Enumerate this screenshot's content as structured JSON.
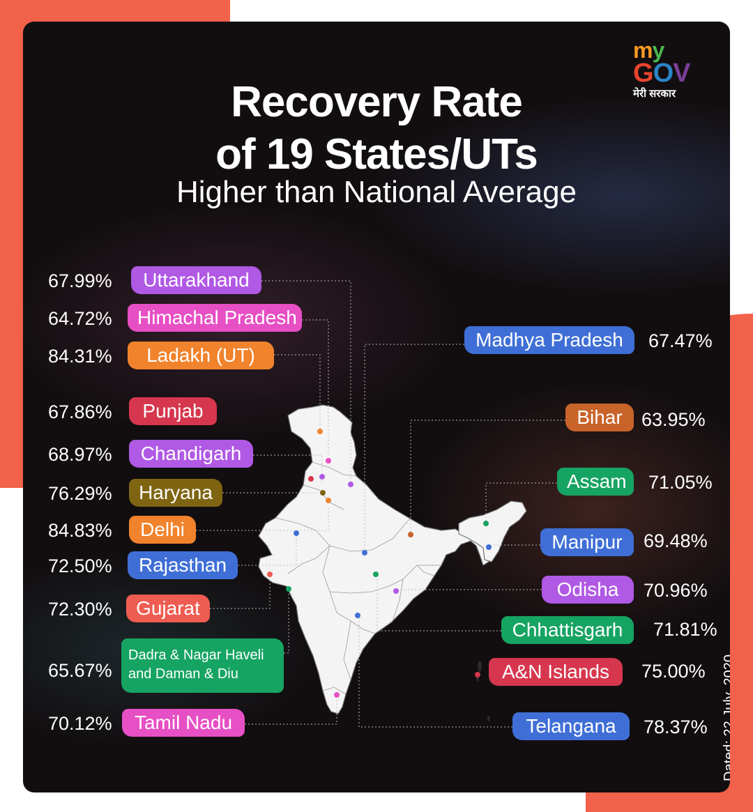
{
  "header": {
    "title_line1": "Recovery Rate",
    "title_line2": "of 19 States/UTs",
    "subtitle": "Higher than National Average"
  },
  "logo": {
    "my": "my",
    "gov": "GOV",
    "hindi": "मेरी सरकार"
  },
  "date_stamp": "Dated: 22 July, 2020",
  "colors": {
    "background": "#120e10",
    "accent_coral": "#f2614a",
    "purple": "#b059e5",
    "pink": "#e74fc4",
    "orange": "#f0832c",
    "crimson": "#d6374e",
    "olive": "#7f6512",
    "blue": "#3f6fd6",
    "salmon": "#ee5c52",
    "green": "#16a462",
    "brown": "#c8632a"
  },
  "left_states": [
    {
      "name": "Uttarakhand",
      "rate": "67.99%",
      "color": "#b059e5"
    },
    {
      "name": "Himachal Pradesh",
      "rate": "64.72%",
      "color": "#e74fc4"
    },
    {
      "name": "Ladakh (UT)",
      "rate": "84.31%",
      "color": "#f0832c"
    },
    {
      "name": "Punjab",
      "rate": "67.86%",
      "color": "#d6374e"
    },
    {
      "name": "Chandigarh",
      "rate": "68.97%",
      "color": "#b059e5"
    },
    {
      "name": "Haryana",
      "rate": "76.29%",
      "color": "#7f6512"
    },
    {
      "name": "Delhi",
      "rate": "84.83%",
      "color": "#f0832c"
    },
    {
      "name": "Rajasthan",
      "rate": "72.50%",
      "color": "#3f6fd6"
    },
    {
      "name": "Gujarat",
      "rate": "72.30%",
      "color": "#ee5c52"
    },
    {
      "name": "Dadra & Nagar Haveli",
      "name_line2": "and Daman & Diu",
      "rate": "65.67%",
      "color": "#16a462"
    },
    {
      "name": "Tamil Nadu",
      "rate": "70.12%",
      "color": "#e74fc4"
    }
  ],
  "right_states": [
    {
      "name": "Madhya Pradesh",
      "rate": "67.47%",
      "color": "#3f6fd6"
    },
    {
      "name": "Bihar",
      "rate": "63.95%",
      "color": "#c8632a"
    },
    {
      "name": "Assam",
      "rate": "71.05%",
      "color": "#16a462"
    },
    {
      "name": "Manipur",
      "rate": "69.48%",
      "color": "#3f6fd6"
    },
    {
      "name": "Odisha",
      "rate": "70.96%",
      "color": "#b059e5"
    },
    {
      "name": "Chhattisgarh",
      "rate": "71.81%",
      "color": "#16a462"
    },
    {
      "name": "A&N Islands",
      "rate": "75.00%",
      "color": "#d6374e"
    },
    {
      "name": "Telangana",
      "rate": "78.37%",
      "color": "#3f6fd6"
    }
  ]
}
